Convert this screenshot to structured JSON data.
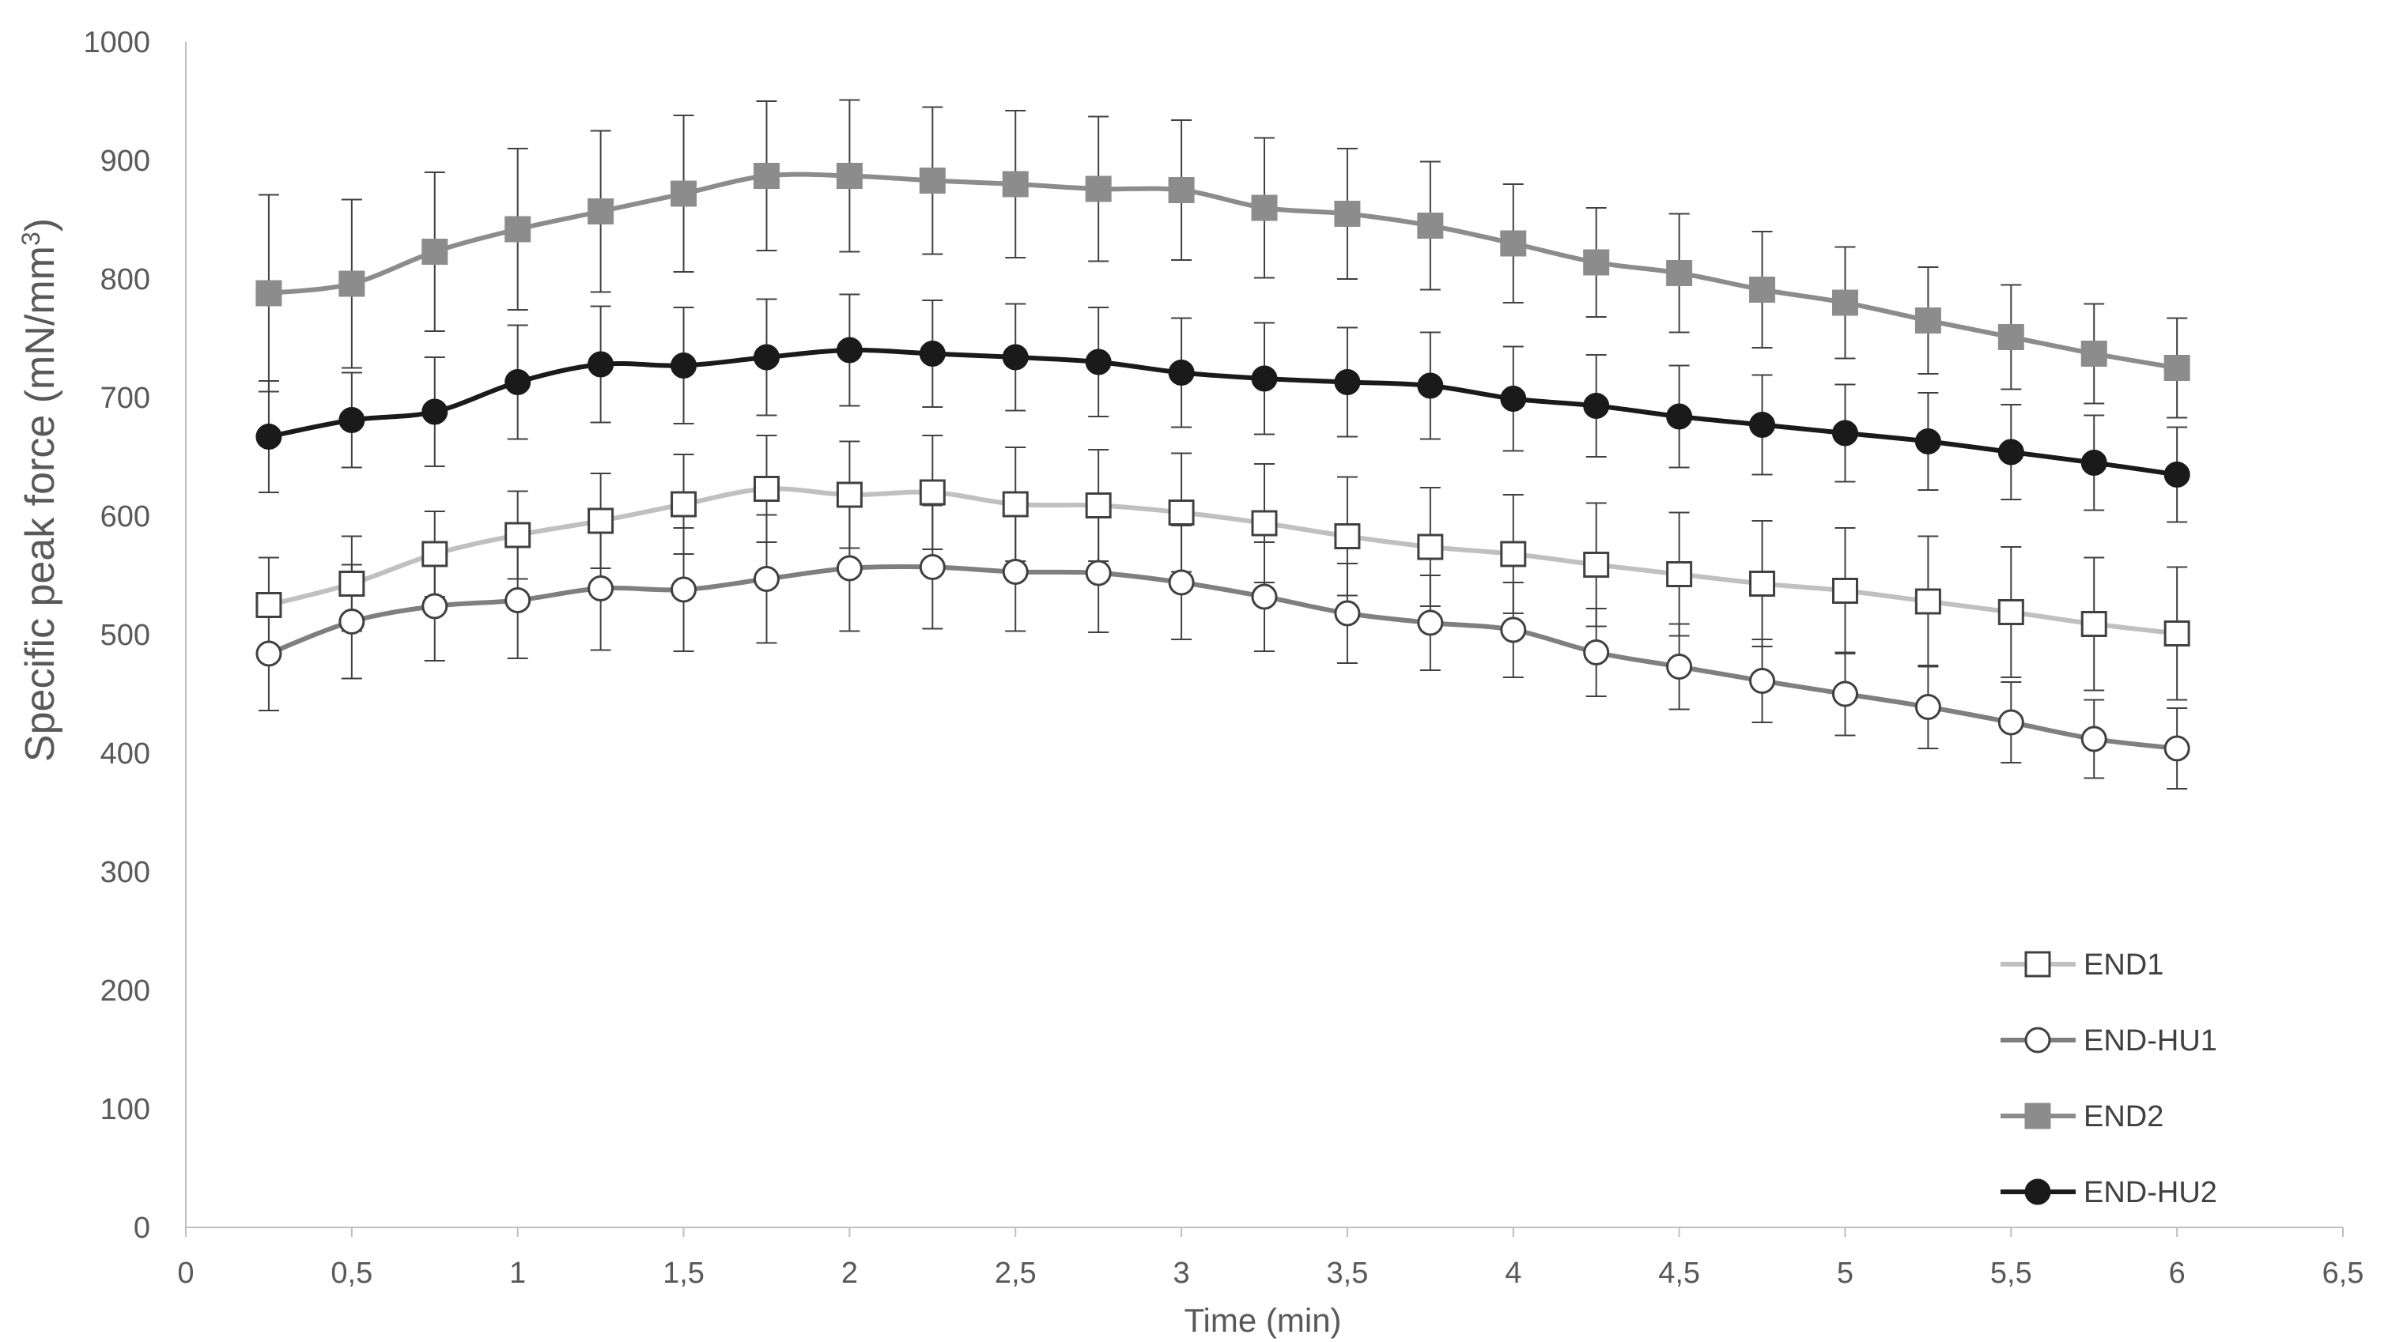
{
  "chart_data": {
    "type": "line",
    "xlabel": "Time (min)",
    "ylabel": "Specific peak force (mN/mm",
    "ylabel_sup": "3",
    "ylabel_close": ")",
    "xlim": [
      0,
      6.5
    ],
    "ylim": [
      0,
      1000
    ],
    "xticks": [
      0,
      0.5,
      1,
      1.5,
      2,
      2.5,
      3,
      3.5,
      4,
      4.5,
      5,
      5.5,
      6,
      6.5
    ],
    "xtick_labels": [
      "0",
      "0,5",
      "1",
      "1,5",
      "2",
      "2,5",
      "3",
      "3,5",
      "4",
      "4,5",
      "5",
      "5,5",
      "6",
      "6,5"
    ],
    "yticks": [
      0,
      100,
      200,
      300,
      400,
      500,
      600,
      700,
      800,
      900,
      1000
    ],
    "ytick_labels": [
      "0",
      "100",
      "200",
      "300",
      "400",
      "500",
      "600",
      "700",
      "800",
      "900",
      "1000"
    ],
    "grid": false,
    "legend_position": "bottom-right",
    "x": [
      0.25,
      0.5,
      0.75,
      1,
      1.25,
      1.5,
      1.75,
      2,
      2.25,
      2.5,
      2.75,
      3,
      3.25,
      3.5,
      3.75,
      4,
      4.25,
      4.5,
      4.75,
      5,
      5.25,
      5.5,
      5.75,
      6
    ],
    "series": [
      {
        "name": "END1",
        "marker": "square-open",
        "line_color": "#c0c0c0",
        "marker_stroke": "#404040",
        "marker_fill": "#ffffff",
        "values": [
          525,
          543,
          568,
          584,
          596,
          610,
          623,
          618,
          620,
          610,
          609,
          603,
          594,
          583,
          574,
          568,
          559,
          551,
          543,
          537,
          528,
          519,
          509,
          501
        ],
        "error": [
          40,
          40,
          36,
          37,
          40,
          42,
          45,
          45,
          48,
          48,
          47,
          50,
          50,
          50,
          50,
          50,
          52,
          52,
          53,
          53,
          55,
          55,
          56,
          56
        ]
      },
      {
        "name": "END-HU1",
        "marker": "circle-open",
        "line_color": "#7f7f7f",
        "marker_stroke": "#404040",
        "marker_fill": "#ffffff",
        "values": [
          484,
          511,
          524,
          529,
          539,
          538,
          547,
          556,
          557,
          553,
          552,
          544,
          532,
          518,
          510,
          504,
          485,
          473,
          461,
          450,
          439,
          426,
          412,
          404
        ],
        "error": [
          48,
          48,
          46,
          49,
          52,
          52,
          54,
          53,
          52,
          50,
          50,
          48,
          46,
          42,
          40,
          40,
          37,
          36,
          35,
          35,
          35,
          34,
          33,
          34
        ]
      },
      {
        "name": "END2",
        "marker": "square-filled",
        "line_color": "#8c8c8c",
        "marker_stroke": "#8c8c8c",
        "marker_fill": "#8c8c8c",
        "values": [
          788,
          796,
          823,
          842,
          857,
          872,
          887,
          887,
          883,
          880,
          876,
          875,
          860,
          855,
          845,
          830,
          814,
          805,
          791,
          780,
          765,
          751,
          737,
          725
        ],
        "error": [
          83,
          71,
          67,
          68,
          68,
          66,
          63,
          64,
          62,
          62,
          61,
          59,
          59,
          55,
          54,
          50,
          46,
          50,
          49,
          47,
          45,
          44,
          42,
          42
        ]
      },
      {
        "name": "END-HU2",
        "marker": "circle-filled",
        "line_color": "#1a1a1a",
        "marker_stroke": "#1a1a1a",
        "marker_fill": "#1a1a1a",
        "values": [
          667,
          681,
          688,
          713,
          728,
          727,
          734,
          740,
          737,
          734,
          730,
          721,
          716,
          713,
          710,
          699,
          693,
          684,
          677,
          670,
          663,
          654,
          645,
          635
        ],
        "error": [
          47,
          40,
          46,
          48,
          49,
          49,
          49,
          47,
          45,
          45,
          46,
          46,
          47,
          46,
          45,
          44,
          43,
          43,
          42,
          41,
          41,
          40,
          40,
          40
        ]
      }
    ]
  }
}
